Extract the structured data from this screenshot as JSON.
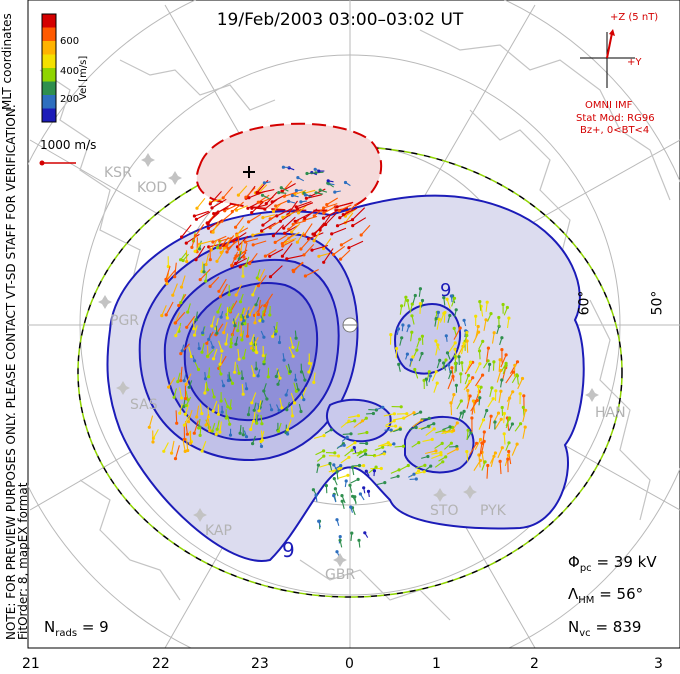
{
  "title": "19/Feb/2003 03:00–03:02 UT",
  "coord_system": "MLT coordinates",
  "colorbar": {
    "label": "Vel [m/s]",
    "ticks": [
      "600",
      "400",
      "200"
    ],
    "colors": [
      "#d40000",
      "#ff5a00",
      "#ffb300",
      "#f4e000",
      "#8fd400",
      "#2f8f4e",
      "#2e6fbf",
      "#1c1cb8"
    ]
  },
  "scale_vector": {
    "label": "1000 m/s",
    "color": "#d40000"
  },
  "imf": {
    "axis_z": "+Z (5 nT)",
    "axis_y": "+Y",
    "source": "OMNI IMF",
    "model": "Stat Mod: RG96",
    "condition": "Bz+, 0<BT<4"
  },
  "left_note": "NOTE: FOR PREVIEW PURPOSES ONLY. PLEASE CONTACT VT-SD STAFF FOR VERIFICATION.",
  "fit_order": "FitOrder: 8, mapEX format",
  "latitude_labels": [
    "60°",
    "50°"
  ],
  "stations": [
    "KSR",
    "KOD",
    "PGR",
    "SAS",
    "KAP",
    "GBR",
    "STO",
    "PYK",
    "HAN"
  ],
  "contour_labels": [
    "9",
    "9"
  ],
  "stats": {
    "phi_pc_label": "Φ",
    "phi_pc_sub": "pc",
    "phi_pc_value": "= 39 kV",
    "lambda_hm_label": "Λ",
    "lambda_hm_sub": "HM",
    "lambda_hm_value": "= 56°",
    "nvc_label": "N",
    "nvc_sub": "vc",
    "nvc_value": "= 839",
    "nrads_label": "N",
    "nrads_sub": "rads",
    "nrads_value": "= 9"
  },
  "mlt_axis": [
    "21",
    "22",
    "23",
    "0",
    "1",
    "2",
    "3"
  ]
}
